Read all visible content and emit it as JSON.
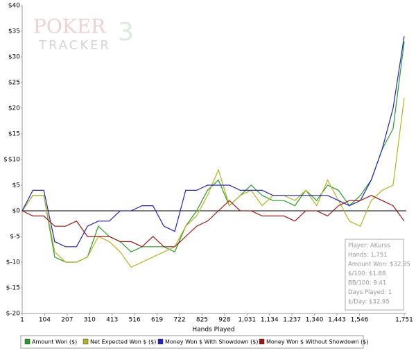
{
  "chart_data": {
    "type": "line",
    "y_label": "$",
    "x_label": "Hands Played",
    "watermark": {
      "word1": "POKER",
      "word2": "TRACKER",
      "number": "3"
    },
    "stats": [
      "Player: AKurss",
      "Hands: 1,751",
      "Amount Won: $32.95",
      "$/100: $1.88",
      "BB/100: 9.41",
      "Days Played: 1",
      "$/Day: $32.95"
    ],
    "xlim": [
      1,
      1751
    ],
    "xticks": [
      1,
      104,
      207,
      310,
      413,
      516,
      619,
      722,
      825,
      928,
      {
        "value": 1031,
        "label": "1,031"
      },
      {
        "value": 1134,
        "label": "1,134"
      },
      {
        "value": 1237,
        "label": "1,237"
      },
      {
        "value": 1340,
        "label": "1,340"
      },
      {
        "value": 1443,
        "label": "1,443"
      },
      {
        "value": 1546,
        "label": "1,546"
      },
      {
        "value": 1751,
        "label": "1,751"
      }
    ],
    "ylim": [
      -20,
      40
    ],
    "yticks": [
      {
        "value": 40,
        "label": "$40"
      },
      {
        "value": 35,
        "label": "$35"
      },
      {
        "value": 30,
        "label": "$30"
      },
      {
        "value": 25,
        "label": "$25"
      },
      {
        "value": 20,
        "label": "$20"
      },
      {
        "value": 15,
        "label": "$15"
      },
      {
        "value": 10,
        "label": "$10"
      },
      {
        "value": 5,
        "label": "$5"
      },
      {
        "value": 0,
        "label": "$0"
      },
      {
        "value": -5,
        "label": "$-5"
      },
      {
        "value": -10,
        "label": "$-10"
      },
      {
        "value": -15,
        "label": "$-15"
      },
      {
        "value": -20,
        "label": "$-20"
      }
    ],
    "x": [
      1,
      50,
      100,
      150,
      200,
      250,
      300,
      350,
      400,
      450,
      500,
      550,
      600,
      650,
      700,
      750,
      800,
      850,
      900,
      950,
      1000,
      1050,
      1100,
      1150,
      1200,
      1250,
      1300,
      1350,
      1400,
      1450,
      1500,
      1550,
      1600,
      1650,
      1700,
      1751
    ],
    "series": [
      {
        "name": "Amount Won ($)",
        "color": "#22a022",
        "values": [
          0,
          3,
          3,
          -9,
          -10,
          -10,
          -9,
          -3,
          -5,
          -6,
          -8,
          -7,
          -7,
          -7,
          -8,
          -3,
          0,
          4,
          6,
          1,
          3,
          5,
          3,
          2,
          2,
          1,
          4,
          2,
          5,
          4,
          1,
          3,
          6,
          12,
          16,
          32.95
        ]
      },
      {
        "name": "Net Expected Won $ ($)",
        "color": "#b4b41e",
        "values": [
          0,
          3,
          3,
          -8,
          -10,
          -10,
          -9,
          -5,
          -6,
          -8,
          -11,
          -10,
          -9,
          -8,
          -7,
          -3,
          -1,
          3,
          8,
          1,
          3,
          4,
          1,
          3,
          3,
          2,
          4,
          1,
          6,
          2,
          -2,
          -3,
          2,
          4,
          5,
          22
        ]
      },
      {
        "name": "Money Won $ With Showdown ($)",
        "color": "#2222c0",
        "values": [
          0,
          4,
          4,
          -6,
          -7,
          -7,
          -3,
          -2,
          -2,
          0,
          0,
          1,
          1,
          -3,
          -4,
          4,
          4,
          5,
          5,
          5,
          4,
          4,
          4,
          3,
          3,
          3,
          3,
          3,
          3,
          2,
          1,
          2,
          6,
          12,
          20,
          34
        ]
      },
      {
        "name": "Money Won $ Without Showdown ($)",
        "color": "#a01414",
        "values": [
          0,
          -1,
          -1,
          -3,
          -3,
          -2,
          -5,
          -5,
          -5,
          -6,
          -6,
          -7,
          -5,
          -7,
          -7,
          -5,
          -3,
          -2,
          0,
          2,
          0,
          0,
          -1,
          -1,
          -1,
          -2,
          0,
          0,
          -1,
          1,
          2,
          2,
          3,
          2,
          1,
          -2
        ]
      }
    ]
  }
}
